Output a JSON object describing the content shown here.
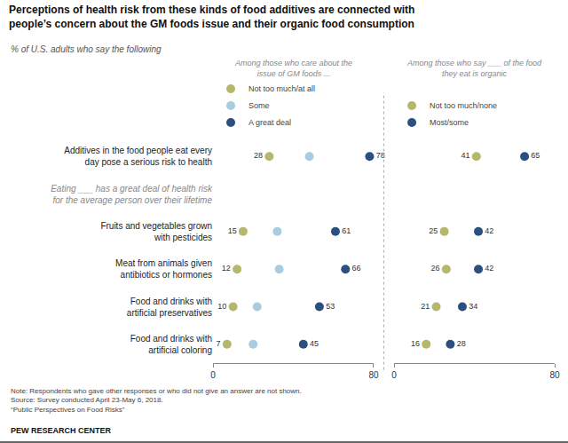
{
  "chart_data": {
    "type": "dot",
    "title": "Perceptions of health risk from these kinds of food additives are connected with\npeople’s concern about the GM foods issue and their organic food consumption",
    "subtitle": "% of U.S. adults who say the following",
    "categories": [
      "Additives in the food people eat every\nday pose a serious risk to health",
      "Eating ___ has a great deal of health risk\nfor the average person over their lifetime",
      "Fruits and vegetables grown\nwith pesticides",
      "Meat from animals given\nantibiotics or hormones",
      "Food and drinks with\nartificial preservatives",
      "Food and drinks with\nartificial coloring"
    ],
    "grid": false,
    "panels": [
      {
        "title": "Among those who care about the\nissue of GM foods ...",
        "legend": "top",
        "xlim": [
          0,
          80
        ],
        "xticks": [
          0,
          80
        ],
        "series": [
          {
            "name": "Not too much/at all",
            "color": "#b5b86b",
            "values": [
              28,
              null,
              15,
              12,
              10,
              7
            ],
            "data_labels": true
          },
          {
            "name": "Some",
            "color": "#a8cde0",
            "values": [
              48,
              null,
              32,
              33,
              22,
              20
            ],
            "data_labels": false
          },
          {
            "name": "A great deal",
            "color": "#2b4f7e",
            "values": [
              78,
              null,
              61,
              66,
              53,
              45
            ],
            "data_labels": true
          }
        ]
      },
      {
        "title": "Among those who say ___ of the food\nthey eat is organic",
        "legend": "top",
        "xlim": [
          0,
          80
        ],
        "xticks": [
          0,
          80
        ],
        "series": [
          {
            "name": "Not too much/none",
            "color": "#b5b86b",
            "values": [
              41,
              null,
              25,
              26,
              21,
              16
            ],
            "data_labels": true
          },
          {
            "name": "Most/some",
            "color": "#2b4f7e",
            "values": [
              65,
              null,
              42,
              42,
              34,
              28
            ],
            "data_labels": true
          }
        ]
      }
    ],
    "annotations": [
      "Note: Respondents who gave other responses or who did not give an answer are not shown.\nSource: Survey conducted April 23-May 6, 2018.\n“Public Perspectives on Food Risks”",
      "PEW RESEARCH CENTER"
    ]
  }
}
